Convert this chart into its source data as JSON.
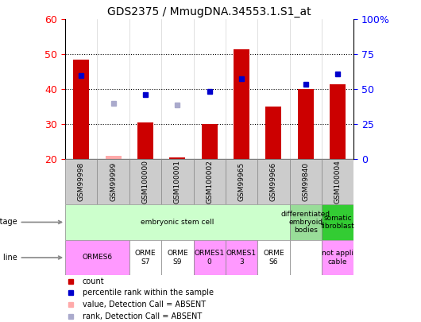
{
  "title": "GDS2375 / MmugDNA.34553.1.S1_at",
  "samples": [
    "GSM99998",
    "GSM99999",
    "GSM100000",
    "GSM100001",
    "GSM100002",
    "GSM99965",
    "GSM99966",
    "GSM99840",
    "GSM100004"
  ],
  "bar_values": [
    48.5,
    null,
    30.5,
    20.5,
    30.0,
    51.5,
    35.0,
    40.0,
    41.5
  ],
  "bar_absent": [
    null,
    21.0,
    null,
    null,
    null,
    null,
    null,
    null,
    null
  ],
  "rank_present": [
    44.0,
    null,
    38.5,
    null,
    39.5,
    43.0,
    null,
    41.5,
    44.5
  ],
  "rank_absent": [
    null,
    36.0,
    null,
    35.5,
    null,
    null,
    null,
    null,
    null
  ],
  "ylim": [
    20,
    60
  ],
  "yticks": [
    20,
    30,
    40,
    50,
    60
  ],
  "y2ticks_pct": [
    0,
    25,
    50,
    75,
    100
  ],
  "y2labels": [
    "0",
    "25",
    "50",
    "75",
    "100%"
  ],
  "bar_color": "#CC0000",
  "bar_absent_color": "#FFAAAA",
  "rank_present_color": "#0000CC",
  "rank_absent_color": "#AAAACC",
  "bg_color": "#FFFFFF",
  "sample_row_color": "#CCCCCC",
  "dev_stage_groups": [
    {
      "label": "embryonic stem cell",
      "start": 0,
      "end": 7,
      "color": "#CCFFCC"
    },
    {
      "label": "differentiated\nembryoid\nbodies",
      "start": 7,
      "end": 8,
      "color": "#99DD99"
    },
    {
      "label": "somatic\nfibroblast",
      "start": 8,
      "end": 9,
      "color": "#33CC33"
    }
  ],
  "cell_configs": [
    {
      "start": 0,
      "end": 2,
      "label": "ORMES6",
      "color": "#FF99FF"
    },
    {
      "start": 2,
      "end": 3,
      "label": "ORME\nS7",
      "color": "#FFFFFF"
    },
    {
      "start": 3,
      "end": 4,
      "label": "ORME\nS9",
      "color": "#FFFFFF"
    },
    {
      "start": 4,
      "end": 5,
      "label": "ORMES1\n0",
      "color": "#FF99FF"
    },
    {
      "start": 5,
      "end": 6,
      "label": "ORMES1\n3",
      "color": "#FF99FF"
    },
    {
      "start": 6,
      "end": 7,
      "label": "ORME\nS6",
      "color": "#FFFFFF"
    },
    {
      "start": 7,
      "end": 8,
      "label": "",
      "color": "#FFFFFF"
    },
    {
      "start": 8,
      "end": 9,
      "label": "not appli\ncable",
      "color": "#FF99FF"
    }
  ],
  "legend_items": [
    {
      "label": "count",
      "color": "#CC0000"
    },
    {
      "label": "percentile rank within the sample",
      "color": "#0000CC"
    },
    {
      "label": "value, Detection Call = ABSENT",
      "color": "#FFAAAA"
    },
    {
      "label": "rank, Detection Call = ABSENT",
      "color": "#AAAACC"
    }
  ]
}
